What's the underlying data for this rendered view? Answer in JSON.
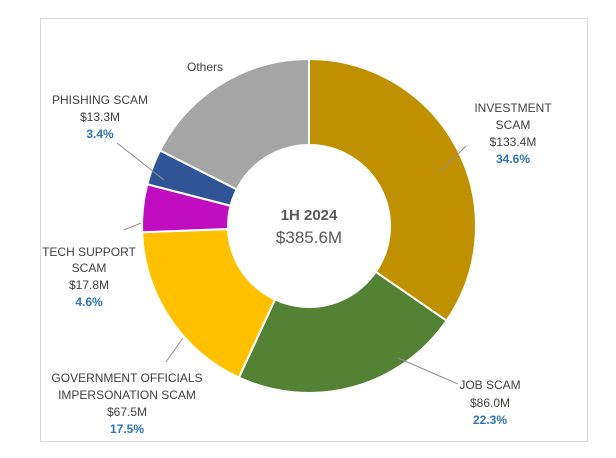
{
  "chart_data": {
    "type": "pie",
    "variant": "donut",
    "center_title": "1H 2024",
    "center_value": "$385.6M",
    "slices": [
      {
        "name": "INVESTMENT SCAM",
        "lines": [
          "INVESTMENT",
          "SCAM"
        ],
        "value": 133.4,
        "value_label": "$133.4M",
        "percent": "34.6%",
        "color": "#BF9000"
      },
      {
        "name": "JOB SCAM",
        "lines": [
          "JOB SCAM"
        ],
        "value": 86.0,
        "value_label": "$86.0M",
        "percent": "22.3%",
        "color": "#548235"
      },
      {
        "name": "GOVERNMENT OFFICIALS IMPERSONATION SCAM",
        "lines": [
          "GOVERNMENT OFFICIALS",
          "IMPERSONATION SCAM"
        ],
        "value": 67.5,
        "value_label": "$67.5M",
        "percent": "17.5%",
        "color": "#FFC000"
      },
      {
        "name": "TECH SUPPORT SCAM",
        "lines": [
          "TECH SUPPORT",
          "SCAM"
        ],
        "value": 17.8,
        "value_label": "$17.8M",
        "percent": "4.6%",
        "color": "#C00DC0"
      },
      {
        "name": "PHISHING SCAM",
        "lines": [
          "PHISHING SCAM"
        ],
        "value": 13.3,
        "value_label": "$13.3M",
        "percent": "3.4%",
        "color": "#2F5597"
      },
      {
        "name": "Others",
        "lines": [
          "Others"
        ],
        "value": 67.6,
        "color": "#A5A5A5"
      }
    ],
    "percent_color": "#2E75B6",
    "start_angle": "12 o'clock",
    "direction": "clockwise"
  }
}
